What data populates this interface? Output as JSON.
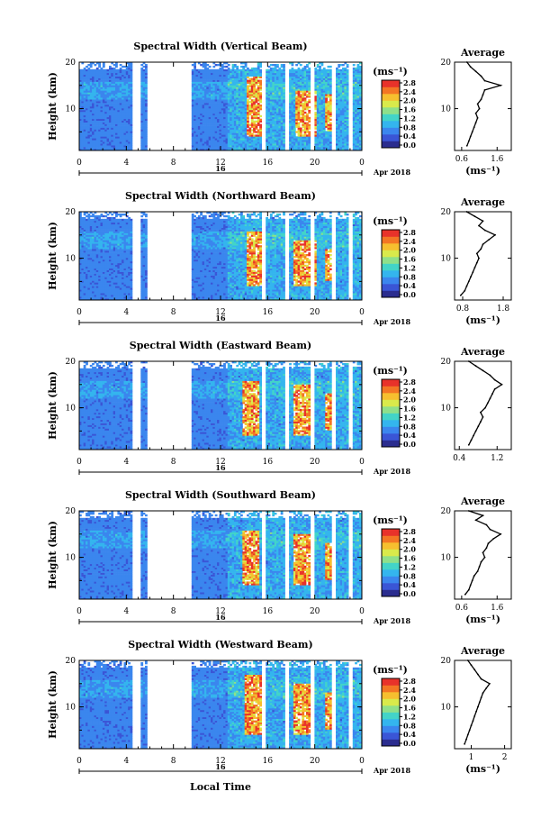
{
  "colors": {
    "scale": [
      "#2b2d8f",
      "#3a55d6",
      "#3b86ee",
      "#34b5ee",
      "#43d4c8",
      "#8fe08a",
      "#d9ea4b",
      "#f6bf2f",
      "#f37624",
      "#e8322a"
    ],
    "axis": "#000000",
    "profile_line": "#000000"
  },
  "chart_data": [
    {
      "type": "heatmap",
      "title": "Spectral Width (Vertical Beam)",
      "xlabel": "",
      "ylabel": "Height (km)",
      "x_ticks": [
        "0",
        "4",
        "8",
        "12",
        "16",
        "20",
        "0"
      ],
      "x_range": [
        0,
        24
      ],
      "y_ticks": [
        "20",
        "10"
      ],
      "y_range": [
        1,
        20
      ],
      "date_label": "16",
      "month_label": "Apr 2018",
      "data_gaps_hours": [
        [
          4.5,
          5.2
        ],
        [
          5.8,
          9.5
        ],
        [
          15.5,
          15.9
        ],
        [
          17.5,
          17.8
        ],
        [
          19.6,
          20.0
        ],
        [
          21.4,
          21.7
        ],
        [
          22.9,
          23.2
        ]
      ],
      "hot_regions": [
        {
          "t": [
            14.2,
            15.4
          ],
          "h": [
            4,
            17
          ]
        },
        {
          "t": [
            18.2,
            20.0
          ],
          "h": [
            4,
            14
          ]
        },
        {
          "t": [
            20.8,
            21.3
          ],
          "h": [
            5,
            13
          ]
        }
      ],
      "colorbar": {
        "unit": "(ms⁻¹)",
        "ticks": [
          "0.0",
          "0.4",
          "0.8",
          "1.2",
          "1.6",
          "2.0",
          "2.4",
          "2.8"
        ]
      },
      "profile": {
        "title": "Average",
        "xlabel": "(ms⁻¹)",
        "x_ticks": [
          "0.6",
          "1.6"
        ],
        "x_range": [
          0.4,
          2.0
        ],
        "y_ticks": [
          "20",
          "10"
        ],
        "y_range": [
          1,
          20
        ],
        "heights": [
          2,
          3,
          4,
          5,
          6,
          7,
          8,
          9,
          10,
          11,
          12,
          13,
          14,
          15,
          16,
          17,
          18,
          19,
          20
        ],
        "values": [
          0.75,
          0.8,
          0.85,
          0.9,
          0.95,
          1.0,
          1.05,
          1.0,
          1.1,
          1.05,
          1.15,
          1.2,
          1.25,
          1.7,
          1.25,
          1.15,
          1.0,
          0.85,
          0.75
        ]
      }
    },
    {
      "type": "heatmap",
      "title": "Spectral Width (Northward Beam)",
      "xlabel": "",
      "ylabel": "Height (km)",
      "x_ticks": [
        "0",
        "4",
        "8",
        "12",
        "16",
        "20",
        "0"
      ],
      "x_range": [
        0,
        24
      ],
      "y_ticks": [
        "20",
        "10"
      ],
      "y_range": [
        1,
        20
      ],
      "date_label": "16",
      "month_label": "Apr 2018",
      "data_gaps_hours": [
        [
          4.5,
          5.2
        ],
        [
          5.8,
          9.5
        ],
        [
          15.5,
          15.9
        ],
        [
          17.5,
          17.8
        ],
        [
          19.6,
          20.0
        ],
        [
          21.4,
          21.7
        ],
        [
          22.9,
          23.2
        ]
      ],
      "hot_regions": [
        {
          "t": [
            14.2,
            15.4
          ],
          "h": [
            4,
            16
          ]
        },
        {
          "t": [
            18.0,
            20.0
          ],
          "h": [
            4,
            14
          ]
        },
        {
          "t": [
            20.8,
            21.4
          ],
          "h": [
            5,
            12
          ]
        }
      ],
      "colorbar": {
        "unit": "(ms⁻¹)",
        "ticks": [
          "0.0",
          "0.4",
          "0.8",
          "1.2",
          "1.6",
          "2.0",
          "2.4",
          "2.8"
        ]
      },
      "profile": {
        "title": "Average",
        "xlabel": "(ms⁻¹)",
        "x_ticks": [
          "0.8",
          "1.8"
        ],
        "x_range": [
          0.6,
          2.0
        ],
        "y_ticks": [
          "20",
          "10"
        ],
        "y_range": [
          1,
          20
        ],
        "heights": [
          2,
          3,
          4,
          5,
          6,
          7,
          8,
          9,
          10,
          11,
          12,
          13,
          14,
          15,
          16,
          17,
          18,
          19,
          20
        ],
        "values": [
          0.75,
          0.85,
          0.9,
          0.95,
          1.0,
          1.05,
          1.1,
          1.15,
          1.2,
          1.15,
          1.25,
          1.3,
          1.45,
          1.6,
          1.35,
          1.2,
          1.3,
          1.1,
          0.9
        ]
      }
    },
    {
      "type": "heatmap",
      "title": "Spectral Width (Eastward Beam)",
      "xlabel": "",
      "ylabel": "Height (km)",
      "x_ticks": [
        "0",
        "4",
        "8",
        "12",
        "16",
        "20",
        "0"
      ],
      "x_range": [
        0,
        24
      ],
      "y_ticks": [
        "20",
        "10"
      ],
      "y_range": [
        1,
        20
      ],
      "date_label": "16",
      "month_label": "Apr 2018",
      "data_gaps_hours": [
        [
          4.5,
          5.2
        ],
        [
          5.8,
          9.5
        ],
        [
          15.5,
          15.9
        ],
        [
          17.5,
          17.8
        ],
        [
          19.6,
          20.0
        ],
        [
          21.4,
          21.7
        ],
        [
          22.9,
          23.2
        ]
      ],
      "hot_regions": [
        {
          "t": [
            13.8,
            15.2
          ],
          "h": [
            4,
            16
          ]
        },
        {
          "t": [
            18.0,
            19.8
          ],
          "h": [
            4,
            15
          ]
        },
        {
          "t": [
            20.7,
            21.3
          ],
          "h": [
            5,
            13
          ]
        }
      ],
      "colorbar": {
        "unit": "(ms⁻¹)",
        "ticks": [
          "0.0",
          "0.4",
          "0.8",
          "1.2",
          "1.6",
          "2.0",
          "2.4",
          "2.8"
        ]
      },
      "profile": {
        "title": "Average",
        "xlabel": "",
        "x_ticks": [
          "0.4",
          "1.2"
        ],
        "x_range": [
          0.3,
          1.5
        ],
        "y_ticks": [
          "20",
          "10"
        ],
        "y_range": [
          1,
          20
        ],
        "heights": [
          2,
          3,
          4,
          5,
          6,
          7,
          8,
          9,
          10,
          11,
          12,
          13,
          14,
          15,
          16,
          17,
          18,
          19,
          20
        ],
        "values": [
          0.6,
          0.65,
          0.7,
          0.75,
          0.8,
          0.85,
          0.9,
          0.85,
          0.95,
          1.0,
          1.05,
          1.1,
          1.15,
          1.3,
          1.15,
          1.05,
          0.9,
          0.75,
          0.6
        ]
      }
    },
    {
      "type": "heatmap",
      "title": "Spectral Width (Southward Beam)",
      "xlabel": "",
      "ylabel": "Height (km)",
      "x_ticks": [
        "0",
        "4",
        "8",
        "12",
        "16",
        "20",
        "0"
      ],
      "x_range": [
        0,
        24
      ],
      "y_ticks": [
        "20",
        "10"
      ],
      "y_range": [
        1,
        20
      ],
      "date_label": "16",
      "month_label": "Apr 2018",
      "data_gaps_hours": [
        [
          4.5,
          5.2
        ],
        [
          5.8,
          9.5
        ],
        [
          15.5,
          15.9
        ],
        [
          17.5,
          17.8
        ],
        [
          19.6,
          20.0
        ],
        [
          21.4,
          21.7
        ],
        [
          22.9,
          23.2
        ]
      ],
      "hot_regions": [
        {
          "t": [
            13.8,
            15.2
          ],
          "h": [
            4,
            16
          ]
        },
        {
          "t": [
            18.0,
            19.8
          ],
          "h": [
            4,
            15
          ]
        },
        {
          "t": [
            20.7,
            21.3
          ],
          "h": [
            5,
            13
          ]
        }
      ],
      "colorbar": {
        "unit": "(ms⁻¹)",
        "ticks": [
          "0.0",
          "0.4",
          "0.8",
          "1.2",
          "1.6",
          "2.0",
          "2.4",
          "2.8"
        ]
      },
      "profile": {
        "title": "Average",
        "xlabel": "(ms⁻¹)",
        "x_ticks": [
          "0.6",
          "1.6"
        ],
        "x_range": [
          0.4,
          2.0
        ],
        "y_ticks": [
          "20",
          "10"
        ],
        "y_range": [
          1,
          20
        ],
        "heights": [
          2,
          3,
          4,
          5,
          6,
          7,
          8,
          9,
          10,
          11,
          12,
          13,
          14,
          15,
          16,
          17,
          18,
          19,
          20
        ],
        "values": [
          0.7,
          0.8,
          0.85,
          0.9,
          0.95,
          1.05,
          1.1,
          1.15,
          1.25,
          1.2,
          1.3,
          1.35,
          1.5,
          1.7,
          1.4,
          1.3,
          1.0,
          1.2,
          0.8
        ]
      }
    },
    {
      "type": "heatmap",
      "title": "Spectral Width (Westward Beam)",
      "xlabel": "Local Time",
      "ylabel": "Height (km)",
      "x_ticks": [
        "0",
        "4",
        "8",
        "12",
        "16",
        "20",
        "0"
      ],
      "x_range": [
        0,
        24
      ],
      "y_ticks": [
        "20",
        "10"
      ],
      "y_range": [
        1,
        20
      ],
      "date_label": "16",
      "month_label": "Apr 2018",
      "data_gaps_hours": [
        [
          4.5,
          5.2
        ],
        [
          5.8,
          9.5
        ],
        [
          15.5,
          15.9
        ],
        [
          17.5,
          17.8
        ],
        [
          19.6,
          20.0
        ],
        [
          21.4,
          21.7
        ],
        [
          22.9,
          23.2
        ]
      ],
      "hot_regions": [
        {
          "t": [
            14.0,
            15.4
          ],
          "h": [
            4,
            17
          ]
        },
        {
          "t": [
            18.0,
            19.8
          ],
          "h": [
            4,
            15
          ]
        },
        {
          "t": [
            20.7,
            21.4
          ],
          "h": [
            5,
            13
          ]
        }
      ],
      "colorbar": {
        "unit": "(ms⁻¹)",
        "ticks": [
          "0.0",
          "0.4",
          "0.8",
          "1.2",
          "1.6",
          "2.0",
          "2.4",
          "2.8"
        ]
      },
      "profile": {
        "title": "Average",
        "xlabel": "(ms⁻¹)",
        "x_ticks": [
          "1",
          "2"
        ],
        "x_range": [
          0.5,
          2.2
        ],
        "y_ticks": [
          "20",
          "10"
        ],
        "y_range": [
          1,
          20
        ],
        "heights": [
          2,
          3,
          4,
          5,
          6,
          7,
          8,
          9,
          10,
          11,
          12,
          13,
          14,
          15,
          16,
          17,
          18,
          19,
          20
        ],
        "values": [
          0.8,
          0.85,
          0.9,
          0.95,
          1.0,
          1.05,
          1.1,
          1.15,
          1.2,
          1.25,
          1.3,
          1.35,
          1.45,
          1.55,
          1.3,
          1.2,
          1.1,
          1.0,
          0.9
        ]
      }
    }
  ]
}
